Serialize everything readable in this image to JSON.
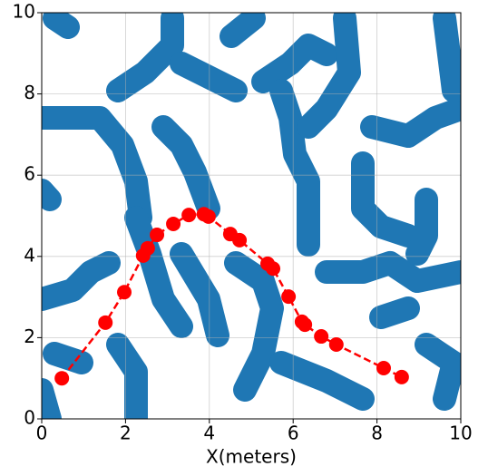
{
  "chart_data": {
    "type": "line",
    "xlabel": "X(meters)",
    "x": [
      0.48,
      1.52,
      1.97,
      2.42,
      2.53,
      2.75,
      3.14,
      3.51,
      3.87,
      3.98,
      4.5,
      4.72,
      5.39,
      5.52,
      5.89,
      6.21,
      6.28,
      6.67,
      7.03,
      8.16,
      8.59
    ],
    "series": [
      {
        "color": "#ff0000",
        "values": [
          1.0,
          2.37,
          3.12,
          4.02,
          4.2,
          4.53,
          4.8,
          5.02,
          5.04,
          4.98,
          4.55,
          4.4,
          3.82,
          3.7,
          3.01,
          2.39,
          2.32,
          2.03,
          1.83,
          1.25,
          1.03
        ]
      }
    ],
    "xlim": [
      0,
      10
    ],
    "ylim": [
      0,
      10
    ],
    "xticks": [
      0,
      2,
      4,
      6,
      8,
      10
    ],
    "yticks": [
      0,
      2,
      4,
      6,
      8,
      10
    ],
    "grid": true
  }
}
